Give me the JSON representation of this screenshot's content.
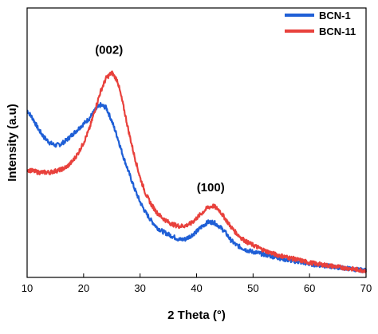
{
  "chart_data": {
    "type": "line",
    "title": "",
    "xlabel": "2 Theta (°)",
    "ylabel": "Intensity (a.u)",
    "xlim": [
      10,
      70
    ],
    "ylim": [
      0,
      100
    ],
    "x_ticks": [
      "10",
      "20",
      "30",
      "40",
      "50",
      "60",
      "70"
    ],
    "y_ticks_shown": false,
    "grid": false,
    "legend_position": "top-right",
    "series": [
      {
        "name": "BCN-1",
        "color": "#1f5fd6",
        "points": [
          [
            10,
            62
          ],
          [
            11,
            59
          ],
          [
            12,
            55
          ],
          [
            13,
            52
          ],
          [
            14,
            50
          ],
          [
            15,
            49
          ],
          [
            16,
            49.5
          ],
          [
            17,
            51
          ],
          [
            18,
            53
          ],
          [
            19,
            55
          ],
          [
            20,
            57
          ],
          [
            21,
            59
          ],
          [
            22,
            62
          ],
          [
            23,
            64
          ],
          [
            24,
            63
          ],
          [
            25,
            58
          ],
          [
            26,
            52
          ],
          [
            27,
            45
          ],
          [
            28,
            39
          ],
          [
            29,
            33
          ],
          [
            30,
            28
          ],
          [
            31,
            24
          ],
          [
            32,
            21
          ],
          [
            33,
            18.5
          ],
          [
            34,
            17
          ],
          [
            35,
            16
          ],
          [
            36,
            15
          ],
          [
            37,
            14
          ],
          [
            38,
            14.2
          ],
          [
            39,
            15.5
          ],
          [
            40,
            17
          ],
          [
            41,
            19
          ],
          [
            42,
            20.5
          ],
          [
            43,
            20.5
          ],
          [
            44,
            19
          ],
          [
            45,
            17
          ],
          [
            46,
            14
          ],
          [
            47,
            12
          ],
          [
            48,
            11
          ],
          [
            49,
            10
          ],
          [
            50,
            9.5
          ],
          [
            52,
            8.5
          ],
          [
            54,
            7.5
          ],
          [
            56,
            6.5
          ],
          [
            58,
            5.8
          ],
          [
            60,
            5
          ],
          [
            62,
            4.5
          ],
          [
            64,
            4
          ],
          [
            66,
            3.5
          ],
          [
            68,
            3
          ],
          [
            70,
            2.5
          ]
        ]
      },
      {
        "name": "BCN-11",
        "color": "#e8413c",
        "points": [
          [
            10,
            40
          ],
          [
            11,
            39.5
          ],
          [
            12,
            39
          ],
          [
            13,
            39
          ],
          [
            14,
            39
          ],
          [
            15,
            39.5
          ],
          [
            16,
            40
          ],
          [
            17,
            41
          ],
          [
            18,
            43
          ],
          [
            19,
            46
          ],
          [
            20,
            50
          ],
          [
            21,
            55
          ],
          [
            22,
            62
          ],
          [
            23,
            69
          ],
          [
            24,
            74
          ],
          [
            25,
            76
          ],
          [
            26,
            73
          ],
          [
            27,
            64
          ],
          [
            28,
            54
          ],
          [
            29,
            45
          ],
          [
            30,
            37
          ],
          [
            31,
            31
          ],
          [
            32,
            27
          ],
          [
            33,
            24
          ],
          [
            34,
            22
          ],
          [
            35,
            20.5
          ],
          [
            36,
            19.5
          ],
          [
            37,
            19
          ],
          [
            38,
            19.2
          ],
          [
            39,
            20
          ],
          [
            40,
            22
          ],
          [
            41,
            24
          ],
          [
            42,
            26
          ],
          [
            43,
            26.5
          ],
          [
            44,
            25
          ],
          [
            45,
            22
          ],
          [
            46,
            19
          ],
          [
            47,
            16.5
          ],
          [
            48,
            14.5
          ],
          [
            49,
            13
          ],
          [
            50,
            12
          ],
          [
            52,
            10
          ],
          [
            54,
            8.5
          ],
          [
            56,
            7.5
          ],
          [
            58,
            6.5
          ],
          [
            60,
            5.5
          ],
          [
            62,
            4.8
          ],
          [
            64,
            4.2
          ],
          [
            66,
            3.6
          ],
          [
            68,
            3
          ],
          [
            70,
            2.5
          ]
        ]
      }
    ],
    "annotations": [
      {
        "text": "(002)",
        "x": 24.5,
        "y": 83
      },
      {
        "text": "(100)",
        "x": 42.5,
        "y": 32
      }
    ]
  }
}
